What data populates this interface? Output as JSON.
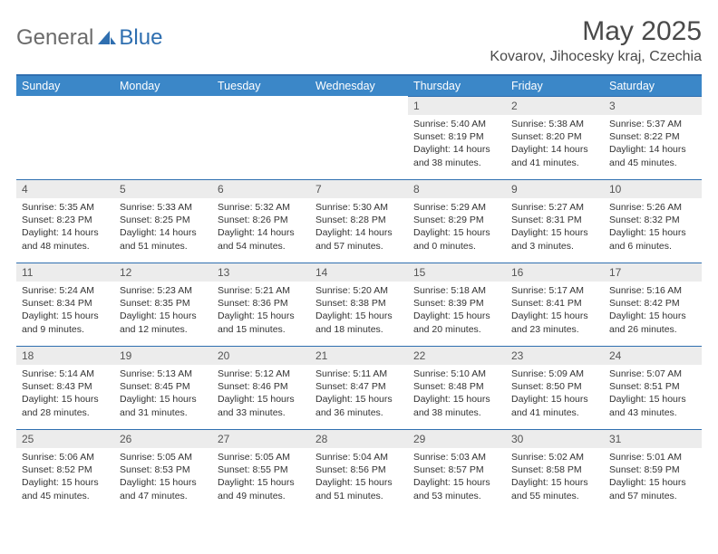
{
  "brand": {
    "part1": "General",
    "part2": "Blue"
  },
  "title": "May 2025",
  "location": "Kovarov, Jihocesky kraj, Czechia",
  "colors": {
    "header_bg": "#3b87c8",
    "rule": "#2f6fb0",
    "daynum_bg": "#ececec",
    "text": "#333333"
  },
  "weekdays": [
    "Sunday",
    "Monday",
    "Tuesday",
    "Wednesday",
    "Thursday",
    "Friday",
    "Saturday"
  ],
  "weeks": [
    [
      null,
      null,
      null,
      null,
      {
        "n": "1",
        "sr": "Sunrise: 5:40 AM",
        "ss": "Sunset: 8:19 PM",
        "dl1": "Daylight: 14 hours",
        "dl2": "and 38 minutes."
      },
      {
        "n": "2",
        "sr": "Sunrise: 5:38 AM",
        "ss": "Sunset: 8:20 PM",
        "dl1": "Daylight: 14 hours",
        "dl2": "and 41 minutes."
      },
      {
        "n": "3",
        "sr": "Sunrise: 5:37 AM",
        "ss": "Sunset: 8:22 PM",
        "dl1": "Daylight: 14 hours",
        "dl2": "and 45 minutes."
      }
    ],
    [
      {
        "n": "4",
        "sr": "Sunrise: 5:35 AM",
        "ss": "Sunset: 8:23 PM",
        "dl1": "Daylight: 14 hours",
        "dl2": "and 48 minutes."
      },
      {
        "n": "5",
        "sr": "Sunrise: 5:33 AM",
        "ss": "Sunset: 8:25 PM",
        "dl1": "Daylight: 14 hours",
        "dl2": "and 51 minutes."
      },
      {
        "n": "6",
        "sr": "Sunrise: 5:32 AM",
        "ss": "Sunset: 8:26 PM",
        "dl1": "Daylight: 14 hours",
        "dl2": "and 54 minutes."
      },
      {
        "n": "7",
        "sr": "Sunrise: 5:30 AM",
        "ss": "Sunset: 8:28 PM",
        "dl1": "Daylight: 14 hours",
        "dl2": "and 57 minutes."
      },
      {
        "n": "8",
        "sr": "Sunrise: 5:29 AM",
        "ss": "Sunset: 8:29 PM",
        "dl1": "Daylight: 15 hours",
        "dl2": "and 0 minutes."
      },
      {
        "n": "9",
        "sr": "Sunrise: 5:27 AM",
        "ss": "Sunset: 8:31 PM",
        "dl1": "Daylight: 15 hours",
        "dl2": "and 3 minutes."
      },
      {
        "n": "10",
        "sr": "Sunrise: 5:26 AM",
        "ss": "Sunset: 8:32 PM",
        "dl1": "Daylight: 15 hours",
        "dl2": "and 6 minutes."
      }
    ],
    [
      {
        "n": "11",
        "sr": "Sunrise: 5:24 AM",
        "ss": "Sunset: 8:34 PM",
        "dl1": "Daylight: 15 hours",
        "dl2": "and 9 minutes."
      },
      {
        "n": "12",
        "sr": "Sunrise: 5:23 AM",
        "ss": "Sunset: 8:35 PM",
        "dl1": "Daylight: 15 hours",
        "dl2": "and 12 minutes."
      },
      {
        "n": "13",
        "sr": "Sunrise: 5:21 AM",
        "ss": "Sunset: 8:36 PM",
        "dl1": "Daylight: 15 hours",
        "dl2": "and 15 minutes."
      },
      {
        "n": "14",
        "sr": "Sunrise: 5:20 AM",
        "ss": "Sunset: 8:38 PM",
        "dl1": "Daylight: 15 hours",
        "dl2": "and 18 minutes."
      },
      {
        "n": "15",
        "sr": "Sunrise: 5:18 AM",
        "ss": "Sunset: 8:39 PM",
        "dl1": "Daylight: 15 hours",
        "dl2": "and 20 minutes."
      },
      {
        "n": "16",
        "sr": "Sunrise: 5:17 AM",
        "ss": "Sunset: 8:41 PM",
        "dl1": "Daylight: 15 hours",
        "dl2": "and 23 minutes."
      },
      {
        "n": "17",
        "sr": "Sunrise: 5:16 AM",
        "ss": "Sunset: 8:42 PM",
        "dl1": "Daylight: 15 hours",
        "dl2": "and 26 minutes."
      }
    ],
    [
      {
        "n": "18",
        "sr": "Sunrise: 5:14 AM",
        "ss": "Sunset: 8:43 PM",
        "dl1": "Daylight: 15 hours",
        "dl2": "and 28 minutes."
      },
      {
        "n": "19",
        "sr": "Sunrise: 5:13 AM",
        "ss": "Sunset: 8:45 PM",
        "dl1": "Daylight: 15 hours",
        "dl2": "and 31 minutes."
      },
      {
        "n": "20",
        "sr": "Sunrise: 5:12 AM",
        "ss": "Sunset: 8:46 PM",
        "dl1": "Daylight: 15 hours",
        "dl2": "and 33 minutes."
      },
      {
        "n": "21",
        "sr": "Sunrise: 5:11 AM",
        "ss": "Sunset: 8:47 PM",
        "dl1": "Daylight: 15 hours",
        "dl2": "and 36 minutes."
      },
      {
        "n": "22",
        "sr": "Sunrise: 5:10 AM",
        "ss": "Sunset: 8:48 PM",
        "dl1": "Daylight: 15 hours",
        "dl2": "and 38 minutes."
      },
      {
        "n": "23",
        "sr": "Sunrise: 5:09 AM",
        "ss": "Sunset: 8:50 PM",
        "dl1": "Daylight: 15 hours",
        "dl2": "and 41 minutes."
      },
      {
        "n": "24",
        "sr": "Sunrise: 5:07 AM",
        "ss": "Sunset: 8:51 PM",
        "dl1": "Daylight: 15 hours",
        "dl2": "and 43 minutes."
      }
    ],
    [
      {
        "n": "25",
        "sr": "Sunrise: 5:06 AM",
        "ss": "Sunset: 8:52 PM",
        "dl1": "Daylight: 15 hours",
        "dl2": "and 45 minutes."
      },
      {
        "n": "26",
        "sr": "Sunrise: 5:05 AM",
        "ss": "Sunset: 8:53 PM",
        "dl1": "Daylight: 15 hours",
        "dl2": "and 47 minutes."
      },
      {
        "n": "27",
        "sr": "Sunrise: 5:05 AM",
        "ss": "Sunset: 8:55 PM",
        "dl1": "Daylight: 15 hours",
        "dl2": "and 49 minutes."
      },
      {
        "n": "28",
        "sr": "Sunrise: 5:04 AM",
        "ss": "Sunset: 8:56 PM",
        "dl1": "Daylight: 15 hours",
        "dl2": "and 51 minutes."
      },
      {
        "n": "29",
        "sr": "Sunrise: 5:03 AM",
        "ss": "Sunset: 8:57 PM",
        "dl1": "Daylight: 15 hours",
        "dl2": "and 53 minutes."
      },
      {
        "n": "30",
        "sr": "Sunrise: 5:02 AM",
        "ss": "Sunset: 8:58 PM",
        "dl1": "Daylight: 15 hours",
        "dl2": "and 55 minutes."
      },
      {
        "n": "31",
        "sr": "Sunrise: 5:01 AM",
        "ss": "Sunset: 8:59 PM",
        "dl1": "Daylight: 15 hours",
        "dl2": "and 57 minutes."
      }
    ]
  ]
}
